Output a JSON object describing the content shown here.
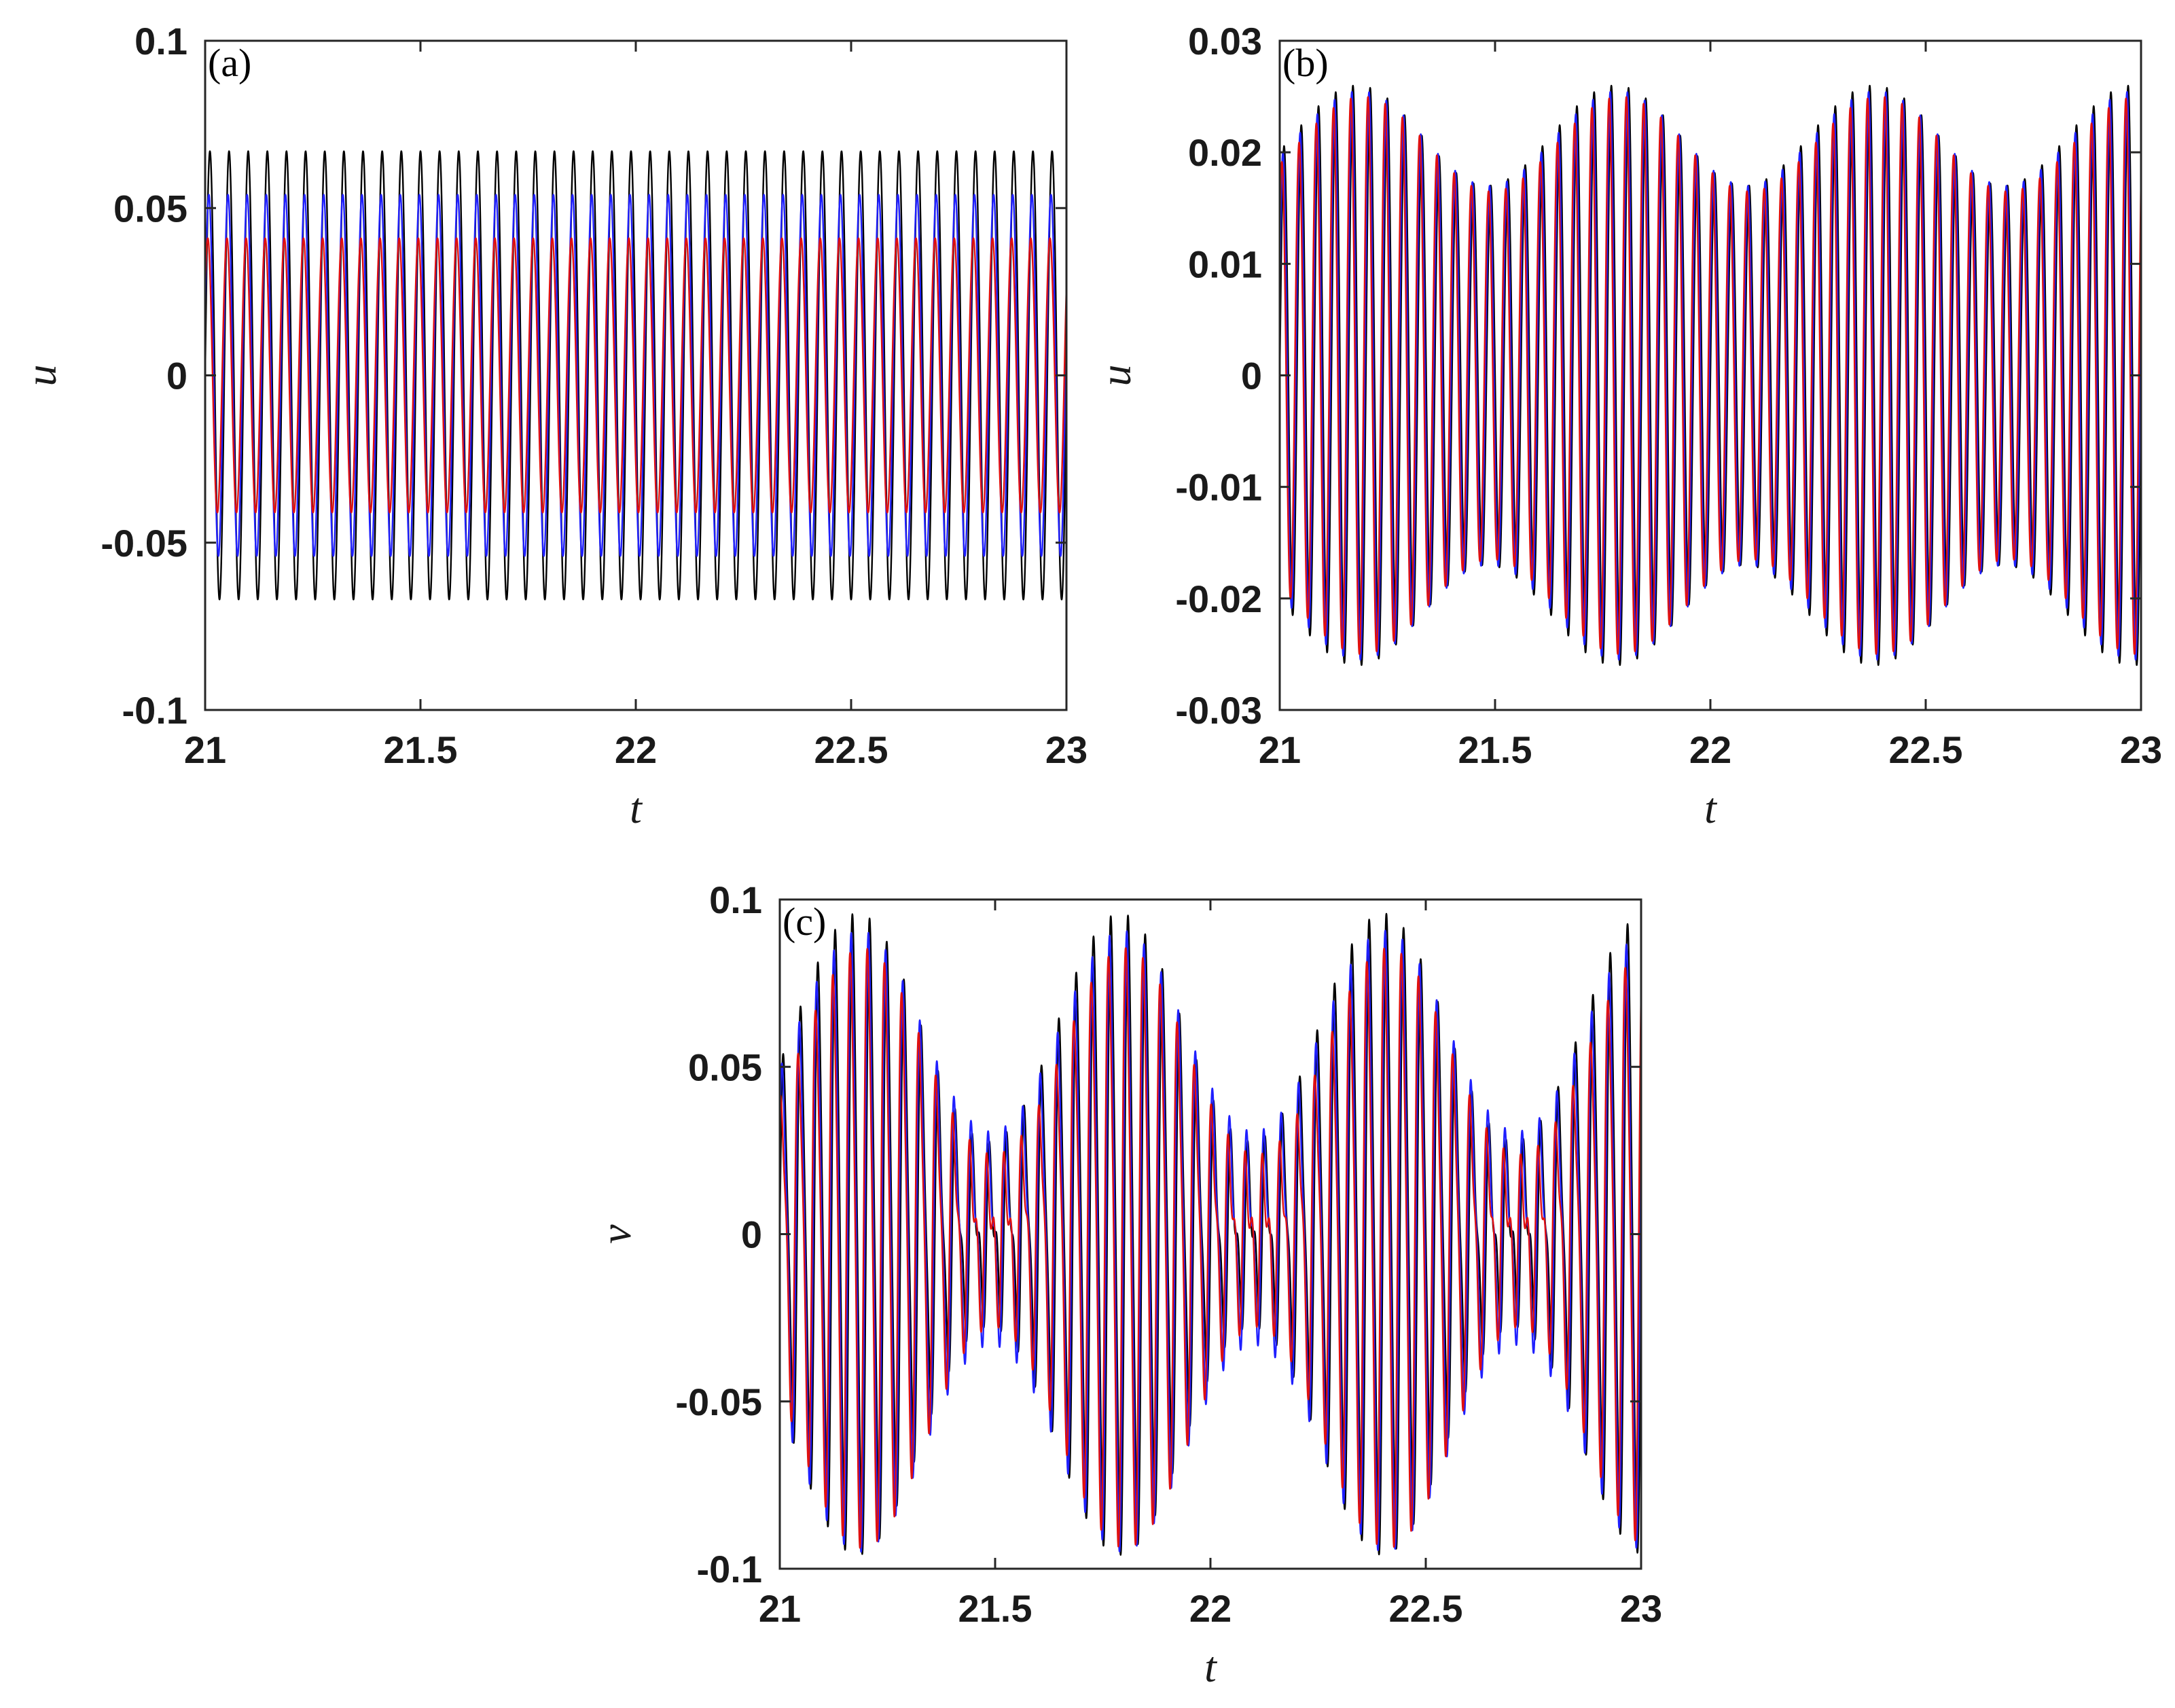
{
  "chart_data": [
    {
      "type": "line",
      "panel_label": "(a)",
      "xlabel": "t",
      "ylabel": "u",
      "xlim": [
        21,
        23
      ],
      "ylim": [
        -0.1,
        0.1
      ],
      "xticks": [
        "21",
        "21.5",
        "22",
        "22.5",
        "23"
      ],
      "yticks": [
        "0.1",
        "0.05",
        "0",
        "-0.05",
        "-0.1"
      ],
      "grid": false,
      "series": [
        {
          "color": "#000000",
          "amplitude": 0.067,
          "frequency": 22.5
        },
        {
          "color": "#1f1fff",
          "amplitude": 0.054,
          "frequency": 22.5
        },
        {
          "color": "#e01010",
          "amplitude": 0.041,
          "frequency": 22.5
        }
      ]
    },
    {
      "type": "line",
      "panel_label": "(b)",
      "xlabel": "t",
      "ylabel": "u",
      "xlim": [
        21,
        23
      ],
      "ylim": [
        -0.03,
        0.03
      ],
      "xticks": [
        "21",
        "21.5",
        "22",
        "22.5",
        "23"
      ],
      "yticks": [
        "0.03",
        "0.02",
        "0.01",
        "0",
        "-0.01",
        "-0.02",
        "-0.03"
      ],
      "grid": false,
      "series": [
        {
          "color": "#000000",
          "envelope_max": 0.026,
          "envelope_min": 0.017,
          "frequency": 25,
          "beat_period": 0.6
        },
        {
          "color": "#1f1fff",
          "envelope_max": 0.0255,
          "envelope_min": 0.017,
          "frequency": 25,
          "beat_period": 0.6
        },
        {
          "color": "#e01010",
          "envelope_max": 0.025,
          "envelope_min": 0.0165,
          "frequency": 25,
          "beat_period": 0.6
        }
      ]
    },
    {
      "type": "line",
      "panel_label": "(c)",
      "xlabel": "t",
      "ylabel": "v",
      "xlim": [
        21,
        23
      ],
      "ylim": [
        -0.1,
        0.1
      ],
      "xticks": [
        "21",
        "21.5",
        "22",
        "22.5",
        "23"
      ],
      "yticks": [
        "0.1",
        "0.05",
        "0",
        "-0.05",
        "-0.1"
      ],
      "grid": false,
      "series": [
        {
          "color": "#000000",
          "envelope_max": 0.093,
          "envelope_min": 0.02,
          "frequency": 25,
          "beat_period": 0.61
        },
        {
          "color": "#1f1fff",
          "envelope_max": 0.09,
          "envelope_min": 0.025,
          "frequency": 25,
          "beat_period": 0.61
        },
        {
          "color": "#e01010",
          "envelope_max": 0.087,
          "envelope_min": 0.018,
          "frequency": 25,
          "beat_period": 0.61
        }
      ]
    }
  ]
}
